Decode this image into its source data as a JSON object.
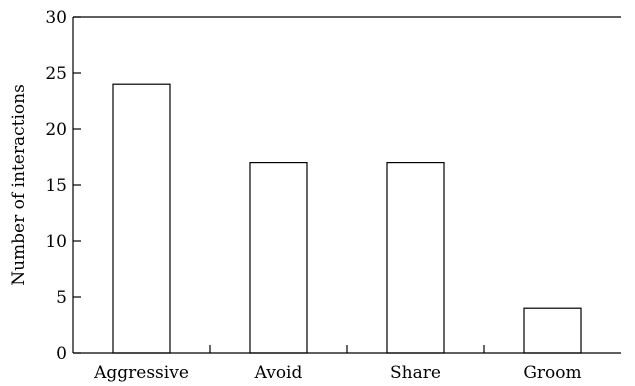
{
  "chart_data": {
    "type": "bar",
    "categories": [
      "Aggressive",
      "Avoid",
      "Share",
      "Groom"
    ],
    "values": [
      24,
      17,
      17,
      4
    ],
    "title": "",
    "xlabel": "",
    "ylabel": "Number of interactions",
    "ylim": [
      0,
      30
    ],
    "yticks": [
      "0",
      "5",
      "10",
      "15",
      "20",
      "25",
      "30"
    ],
    "grid": false,
    "legend": "none",
    "colors": {
      "bar_fill": "#ffffff",
      "bar_stroke": "#000000",
      "axis": "#000000"
    }
  }
}
